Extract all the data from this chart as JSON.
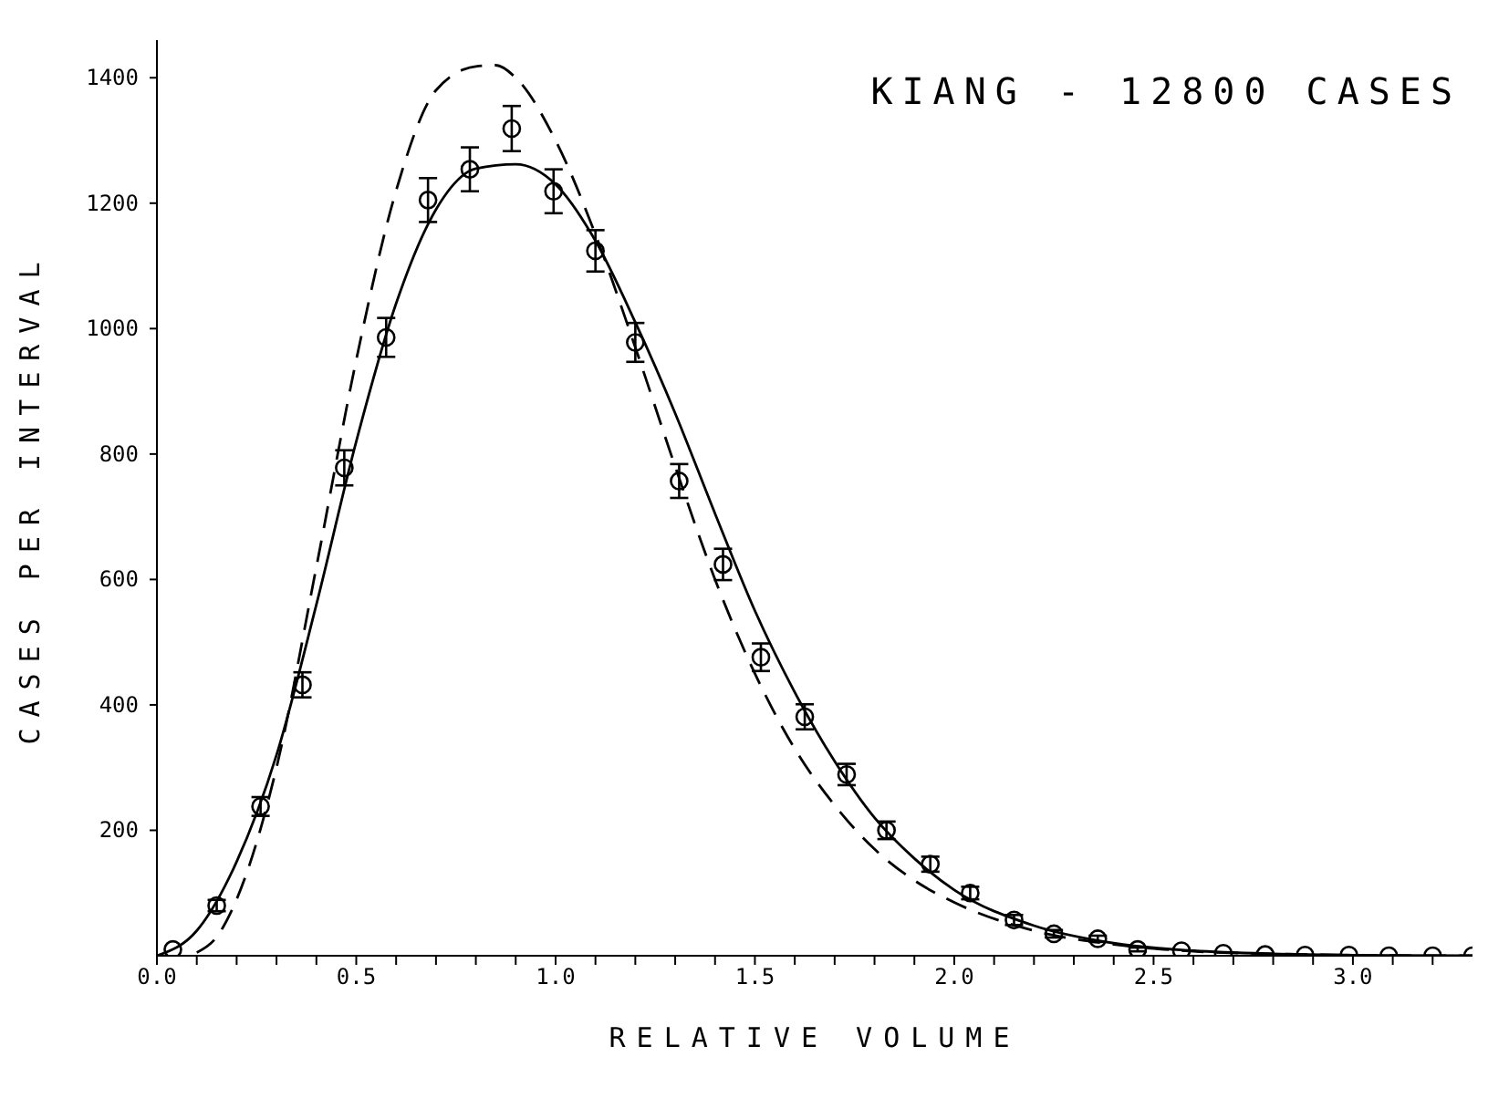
{
  "chart_data": {
    "type": "scatter",
    "title": "KIANG - 12800 CASES",
    "xlabel": "RELATIVE VOLUME",
    "ylabel": "CASES PER INTERVAL",
    "xlim": [
      0,
      3.3
    ],
    "ylim": [
      0,
      1460
    ],
    "xticks": [
      {
        "value": 0,
        "label": "0.0"
      },
      {
        "value": 0.1,
        "label": null
      },
      {
        "value": 0.2,
        "label": null
      },
      {
        "value": 0.3,
        "label": null
      },
      {
        "value": 0.4,
        "label": null
      },
      0.5,
      {
        "value": 0.6,
        "label": null
      },
      {
        "value": 0.7,
        "label": null
      },
      {
        "value": 0.8,
        "label": null
      },
      {
        "value": 0.9,
        "label": null
      },
      {
        "value": 1,
        "label": "1.0"
      },
      {
        "value": 1.1,
        "label": null
      },
      {
        "value": 1.2,
        "label": null
      },
      {
        "value": 1.3,
        "label": null
      },
      {
        "value": 1.4,
        "label": null
      },
      1.5,
      {
        "value": 1.6,
        "label": null
      },
      {
        "value": 1.7,
        "label": null
      },
      {
        "value": 1.8,
        "label": null
      },
      {
        "value": 1.9,
        "label": null
      },
      {
        "value": 2,
        "label": "2.0"
      },
      {
        "value": 2.1,
        "label": null
      },
      {
        "value": 2.2,
        "label": null
      },
      {
        "value": 2.3,
        "label": null
      },
      {
        "value": 2.4,
        "label": null
      },
      2.5,
      {
        "value": 2.6,
        "label": null
      },
      {
        "value": 2.7,
        "label": null
      },
      {
        "value": 2.8,
        "label": null
      },
      {
        "value": 2.9,
        "label": null
      },
      {
        "value": 3,
        "label": "3.0"
      },
      {
        "value": 3.1,
        "label": null
      },
      {
        "value": 3.2,
        "label": null
      }
    ],
    "yticks": [
      200,
      400,
      600,
      800,
      1000,
      1200,
      1400
    ],
    "grid": false,
    "legend": false,
    "series": [
      {
        "color": "#000000",
        "marker": "circle",
        "x": [
          0.04,
          0.15,
          0.26,
          0.365,
          0.47,
          0.575,
          0.68,
          0.785,
          0.89,
          0.995,
          1.1,
          1.2,
          1.31,
          1.42,
          1.515,
          1.625,
          1.73,
          1.83,
          1.94,
          2.04,
          2.15,
          2.25,
          2.36,
          2.46,
          2.57,
          2.675,
          2.78,
          2.88,
          2.99,
          3.09,
          3.2,
          3.3
        ],
        "values": [
          10,
          80,
          238,
          432,
          778,
          986,
          1205,
          1254,
          1319,
          1219,
          1124,
          978,
          757,
          624,
          476,
          381,
          289,
          200,
          146,
          100,
          57,
          35,
          27,
          10,
          8,
          4,
          2,
          1,
          1,
          0,
          0,
          0
        ],
        "errors": [
          null,
          9,
          15,
          20,
          28,
          31,
          35,
          35,
          36,
          35,
          33,
          31,
          27,
          25,
          22,
          20,
          17,
          14,
          12,
          10,
          8,
          6,
          5,
          3,
          null,
          null,
          null,
          null,
          null,
          null,
          null,
          null
        ]
      },
      {
        "type": "line",
        "color": "#000000",
        "marker": "none",
        "line_style": "solid",
        "x": [
          0,
          0.1,
          0.2,
          0.3,
          0.4,
          0.5,
          0.6,
          0.7,
          0.8,
          0.9,
          1.0,
          1.1,
          1.2,
          1.3,
          1.4,
          1.5,
          1.6,
          1.7,
          1.8,
          1.9,
          2.0,
          2.2,
          2.4,
          2.6,
          2.8,
          3.0,
          3.3
        ],
        "values": [
          0,
          40,
          150,
          320,
          560,
          820,
          1040,
          1190,
          1255,
          1262,
          1230,
          1140,
          1010,
          865,
          705,
          550,
          420,
          310,
          220,
          155,
          105,
          48,
          20,
          8,
          3,
          1,
          0
        ]
      },
      {
        "type": "line",
        "color": "#000000",
        "marker": "none",
        "line_style": "dashed",
        "x": [
          0.1,
          0.15,
          0.2,
          0.3,
          0.4,
          0.5,
          0.6,
          0.7,
          0.8,
          0.85,
          0.9,
          1.0,
          1.1,
          1.2,
          1.3,
          1.4,
          1.5,
          1.6,
          1.7,
          1.8,
          1.9,
          2.0,
          2.2,
          2.4,
          2.6,
          2.8,
          3.0,
          3.3
        ],
        "values": [
          5,
          30,
          90,
          300,
          620,
          950,
          1220,
          1380,
          1418,
          1420,
          1400,
          1300,
          1150,
          970,
          780,
          600,
          450,
          330,
          240,
          170,
          120,
          85,
          40,
          18,
          7,
          3,
          1,
          0
        ]
      }
    ]
  }
}
